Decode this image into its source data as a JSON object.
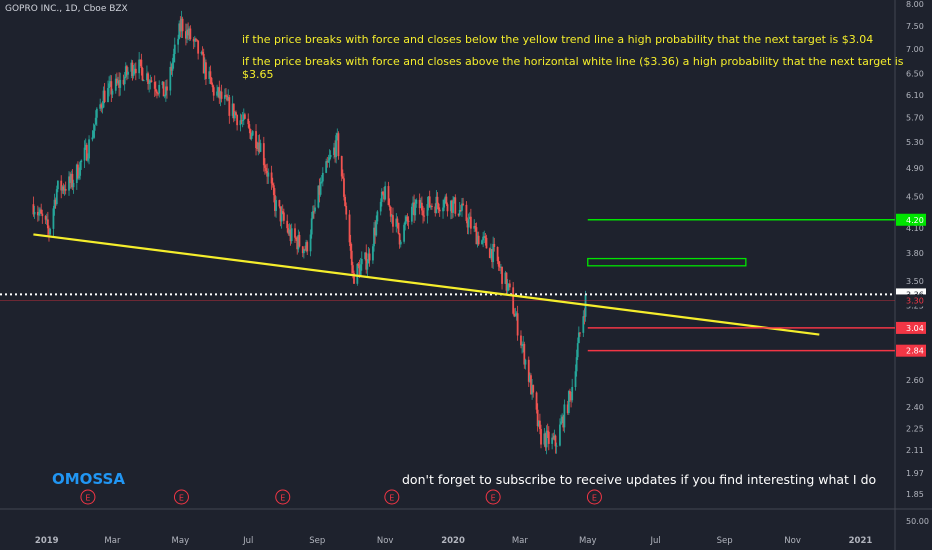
{
  "header": {
    "title": "GOPRO INC., 1D, Cboe BZX"
  },
  "annotations": {
    "line1": "if the price breaks with force and closes below the yellow trend line a high probability that the next target is $3.04",
    "line2": "if the price breaks with force and closes above the horizontal white line ($3.36) a high probability that the next target is $3.65",
    "brand": "OMOSSA",
    "subscribe": "don't forget to subscribe to receive updates if you find interesting what I do"
  },
  "chart_data": {
    "type": "candlestick",
    "symbol": "GOPRO INC., 1D, Cboe BZX",
    "y_axis": {
      "scale": "log",
      "range": [
        1.78,
        8.1
      ],
      "tick_labels": [
        "8.00",
        "7.50",
        "7.00",
        "6.50",
        "6.10",
        "5.70",
        "5.30",
        "4.90",
        "4.50",
        "4.10",
        "3.80",
        "3.50",
        "3.25",
        "3.04",
        "2.84",
        "2.60",
        "2.40",
        "2.25",
        "2.11",
        "1.97",
        "1.85"
      ],
      "volume_label": "50.00"
    },
    "x_axis": {
      "tick_labels": [
        "2019",
        "Mar",
        "May",
        "Jul",
        "Sep",
        "Nov",
        "2020",
        "Mar",
        "May",
        "Jul",
        "Sep",
        "Nov",
        "2021"
      ]
    },
    "price_path": [
      [
        "2018-12-20",
        4.4
      ],
      [
        "2019-01-03",
        4.05
      ],
      [
        "2019-01-10",
        4.6
      ],
      [
        "2019-01-24",
        4.7
      ],
      [
        "2019-02-07",
        5.2
      ],
      [
        "2019-02-21",
        6.1
      ],
      [
        "2019-03-07",
        6.3
      ],
      [
        "2019-03-21",
        6.7
      ],
      [
        "2019-04-04",
        6.4
      ],
      [
        "2019-04-18",
        6.1
      ],
      [
        "2019-05-02",
        7.55
      ],
      [
        "2019-05-16",
        7.0
      ],
      [
        "2019-05-30",
        6.2
      ],
      [
        "2019-06-13",
        5.9
      ],
      [
        "2019-06-27",
        5.6
      ],
      [
        "2019-07-11",
        5.3
      ],
      [
        "2019-07-25",
        4.4
      ],
      [
        "2019-08-08",
        4.0
      ],
      [
        "2019-08-22",
        3.85
      ],
      [
        "2019-09-05",
        4.7
      ],
      [
        "2019-09-19",
        5.3
      ],
      [
        "2019-10-03",
        3.55
      ],
      [
        "2019-10-17",
        3.75
      ],
      [
        "2019-10-31",
        4.55
      ],
      [
        "2019-11-14",
        4.0
      ],
      [
        "2019-11-28",
        4.35
      ],
      [
        "2019-12-12",
        4.4
      ],
      [
        "2019-12-26",
        4.45
      ],
      [
        "2020-01-09",
        4.3
      ],
      [
        "2020-01-23",
        4.0
      ],
      [
        "2020-02-06",
        3.8
      ],
      [
        "2020-02-20",
        3.4
      ],
      [
        "2020-03-05",
        2.8
      ],
      [
        "2020-03-19",
        2.2
      ],
      [
        "2020-04-02",
        2.15
      ],
      [
        "2020-04-16",
        2.5
      ],
      [
        "2020-04-30",
        3.36
      ]
    ],
    "series": [
      {
        "type": "trendline",
        "color": "#f5ee2c",
        "points": [
          [
            "2018-12-20",
            4.02
          ],
          [
            "2020-11-25",
            2.98
          ]
        ]
      },
      {
        "type": "horizontal-line",
        "label": "3.36",
        "value": 3.36,
        "color": "#ffffff",
        "style": "dotted"
      },
      {
        "type": "horizontal-line",
        "label": "3.30",
        "value": 3.3,
        "color": "#f23645"
      },
      {
        "type": "target-line",
        "label": "4.20",
        "value": 4.2,
        "color": "#00e400",
        "from": "2020-05-01",
        "to": "2020-12-31"
      },
      {
        "type": "target-box",
        "low": 3.66,
        "high": 3.74,
        "color": "#00e400",
        "from": "2020-05-01",
        "to": "2020-09-20"
      },
      {
        "type": "target-line",
        "label": "3.04",
        "value": 3.04,
        "color": "#f23645",
        "from": "2020-05-01",
        "to": "2020-12-31"
      },
      {
        "type": "target-line",
        "label": "2.84",
        "value": 2.84,
        "color": "#f23645",
        "from": "2020-05-01",
        "to": "2020-12-31"
      }
    ],
    "earnings_markers": [
      "2019-02-07",
      "2019-05-02",
      "2019-08-01",
      "2019-11-07",
      "2020-02-06",
      "2020-05-07"
    ],
    "colors": {
      "background": "#1e222d",
      "up": "#26a69a",
      "down": "#ef5350",
      "trend": "#f5ee2c",
      "target_up": "#00e400",
      "target_down": "#f23645"
    }
  }
}
